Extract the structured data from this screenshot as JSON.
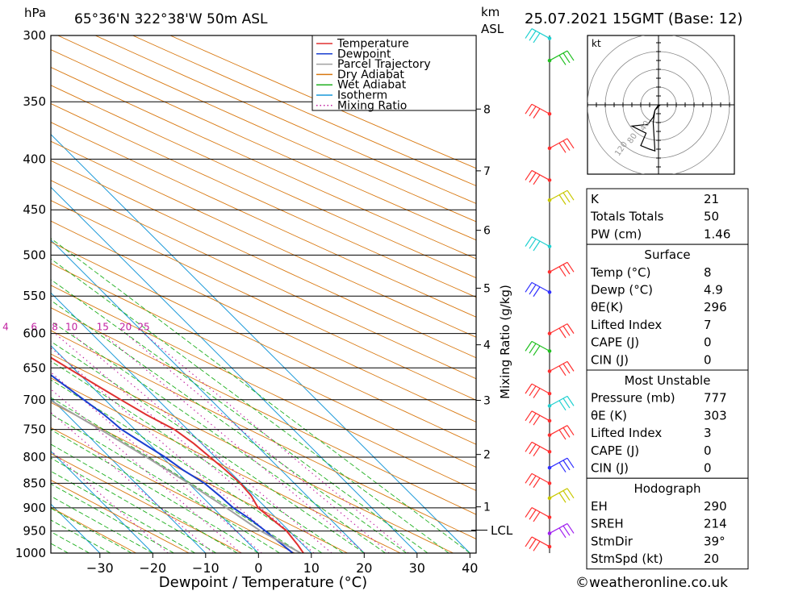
{
  "header": {
    "location": "65°36'N  322°38'W  50m  ASL",
    "datetime": "25.07.2021  15GMT  (Base: 12)",
    "hpa_unit": "hPa",
    "km_unit": "km",
    "asl_unit": "ASL"
  },
  "chart_data": {
    "type": "line",
    "title": "",
    "xlabel": "Dewpoint / Temperature (°C)",
    "ylabel": "hPa",
    "right_axis_label": "Mixing Ratio (g/kg)",
    "xlim": [
      -40,
      40
    ],
    "ylim": [
      1000,
      300
    ],
    "y_scale": "log",
    "skew": "45°",
    "pressure_ticks": [
      300,
      350,
      400,
      450,
      500,
      550,
      600,
      650,
      700,
      750,
      800,
      850,
      900,
      950,
      1000
    ],
    "x_ticks": [
      -30,
      -20,
      -10,
      0,
      10,
      20,
      30,
      40
    ],
    "mixing_ratio_labels": [
      "1",
      "2",
      "3",
      "4",
      "6",
      "8",
      "10",
      "15",
      "20",
      "25"
    ],
    "mixing_ratio_values": [
      1,
      2,
      3,
      4,
      6,
      8,
      10,
      15,
      20,
      25
    ],
    "km_ticks": [
      {
        "label": "8",
        "p": 356
      },
      {
        "label": "7",
        "p": 411
      },
      {
        "label": "6",
        "p": 472
      },
      {
        "label": "5",
        "p": 540
      },
      {
        "label": "4",
        "p": 616
      },
      {
        "label": "3",
        "p": 701
      },
      {
        "label": "2",
        "p": 795
      },
      {
        "label": "1",
        "p": 898
      }
    ],
    "lcl_label": "LCL",
    "lcl_pressure": 948,
    "legend": [
      {
        "name": "Temperature",
        "color": "#e03030",
        "style": "solid"
      },
      {
        "name": "Dewpoint",
        "color": "#1a3fd0",
        "style": "solid"
      },
      {
        "name": "Parcel Trajectory",
        "color": "#a0a0a0",
        "style": "solid"
      },
      {
        "name": "Dry Adiabat",
        "color": "#d87810",
        "style": "solid"
      },
      {
        "name": "Wet Adiabat",
        "color": "#20b020",
        "style": "solid"
      },
      {
        "name": "Isotherm",
        "color": "#1898d8",
        "style": "solid"
      },
      {
        "name": "Mixing Ratio",
        "color": "#c020a0",
        "style": "dotted"
      }
    ],
    "legend_position": "top-right",
    "series": [
      {
        "name": "Temperature",
        "color": "#e03030",
        "points": [
          [
            1000,
            8.5
          ],
          [
            980,
            9
          ],
          [
            950,
            9.5
          ],
          [
            925,
            9
          ],
          [
            900,
            8.5
          ],
          [
            875,
            9.5
          ],
          [
            850,
            9.8
          ],
          [
            825,
            9.5
          ],
          [
            800,
            9
          ],
          [
            775,
            8.5
          ],
          [
            750,
            7.5
          ],
          [
            725,
            5
          ],
          [
            700,
            3
          ],
          [
            675,
            1
          ],
          [
            650,
            -1
          ],
          [
            625,
            -3
          ],
          [
            600,
            -5
          ],
          [
            575,
            -7.5
          ],
          [
            550,
            -10
          ],
          [
            525,
            -12.5
          ],
          [
            500,
            -15
          ],
          [
            475,
            -18
          ],
          [
            450,
            -21
          ],
          [
            425,
            -24
          ],
          [
            400,
            -27.5
          ],
          [
            375,
            -31
          ],
          [
            350,
            -35
          ],
          [
            330,
            -38
          ],
          [
            318,
            -37
          ],
          [
            308,
            -35
          ],
          [
            300,
            -33
          ]
        ]
      },
      {
        "name": "Dewpoint",
        "color": "#1a3fd0",
        "points": [
          [
            1000,
            6.5
          ],
          [
            975,
            6
          ],
          [
            950,
            5.5
          ],
          [
            925,
            4.9
          ],
          [
            900,
            3.8
          ],
          [
            875,
            3.5
          ],
          [
            850,
            3
          ],
          [
            825,
            1.5
          ],
          [
            800,
            0.5
          ],
          [
            775,
            -1
          ],
          [
            750,
            -2.5
          ],
          [
            725,
            -3
          ],
          [
            700,
            -4
          ],
          [
            675,
            -5
          ],
          [
            650,
            -6
          ],
          [
            625,
            -7.5
          ],
          [
            600,
            -9
          ],
          [
            575,
            -11
          ],
          [
            550,
            -13
          ],
          [
            525,
            -16
          ],
          [
            500,
            -19
          ],
          [
            475,
            -23.5
          ],
          [
            450,
            -28
          ],
          [
            425,
            -33
          ],
          [
            410,
            -34
          ],
          [
            400,
            -33
          ],
          [
            375,
            -36
          ],
          [
            350,
            -40
          ],
          [
            340,
            -41
          ],
          [
            320,
            -45
          ],
          [
            300,
            -50
          ]
        ]
      },
      {
        "name": "Parcel Trajectory",
        "color": "#a0a0a0",
        "points": [
          [
            1000,
            8
          ],
          [
            948,
            4.5
          ],
          [
            900,
            2.5
          ],
          [
            850,
            0
          ],
          [
            800,
            -3
          ],
          [
            750,
            -6.5
          ],
          [
            700,
            -10.5
          ],
          [
            650,
            -15
          ],
          [
            600,
            -20
          ],
          [
            550,
            -26
          ],
          [
            500,
            -33
          ],
          [
            450,
            -40
          ],
          [
            400,
            -48
          ],
          [
            350,
            -57
          ],
          [
            300,
            -67
          ]
        ]
      }
    ],
    "hodograph": {
      "unit": "kt",
      "ring_labels": [
        "40",
        "80",
        "120"
      ],
      "points": [
        [
          0,
          0
        ],
        [
          -4,
          -6
        ],
        [
          -6,
          -14
        ],
        [
          -12,
          -22
        ],
        [
          -30,
          -24
        ],
        [
          -14,
          -32
        ],
        [
          -20,
          -46
        ],
        [
          -10,
          -50
        ],
        [
          -4,
          -52
        ],
        [
          -6,
          -20
        ],
        [
          -4,
          -6
        ],
        [
          2,
          0
        ]
      ]
    }
  },
  "indices": {
    "top": [
      {
        "label": "K",
        "value": "21"
      },
      {
        "label": "Totals Totals",
        "value": "50"
      },
      {
        "label": "PW (cm)",
        "value": "1.46"
      }
    ],
    "surface": {
      "title": "Surface",
      "rows": [
        {
          "label": "Temp (°C)",
          "value": "8"
        },
        {
          "label": "Dewp (°C)",
          "value": "4.9"
        },
        {
          "label": "θE(K)",
          "value": "296"
        },
        {
          "label": "Lifted Index",
          "value": "7"
        },
        {
          "label": "CAPE (J)",
          "value": "0"
        },
        {
          "label": "CIN (J)",
          "value": "0"
        }
      ]
    },
    "most_unstable": {
      "title": "Most Unstable",
      "rows": [
        {
          "label": "Pressure (mb)",
          "value": "777"
        },
        {
          "label": "θE (K)",
          "value": "303"
        },
        {
          "label": "Lifted Index",
          "value": "3"
        },
        {
          "label": "CAPE (J)",
          "value": "0"
        },
        {
          "label": "CIN (J)",
          "value": "0"
        }
      ]
    },
    "hodograph": {
      "title": "Hodograph",
      "rows": [
        {
          "label": "EH",
          "value": "290"
        },
        {
          "label": "SREH",
          "value": "214"
        },
        {
          "label": "StmDir",
          "value": "39°"
        },
        {
          "label": "StmSpd (kt)",
          "value": "20"
        }
      ]
    }
  },
  "footer": {
    "copyright": "©weatheronline.co.uk"
  }
}
